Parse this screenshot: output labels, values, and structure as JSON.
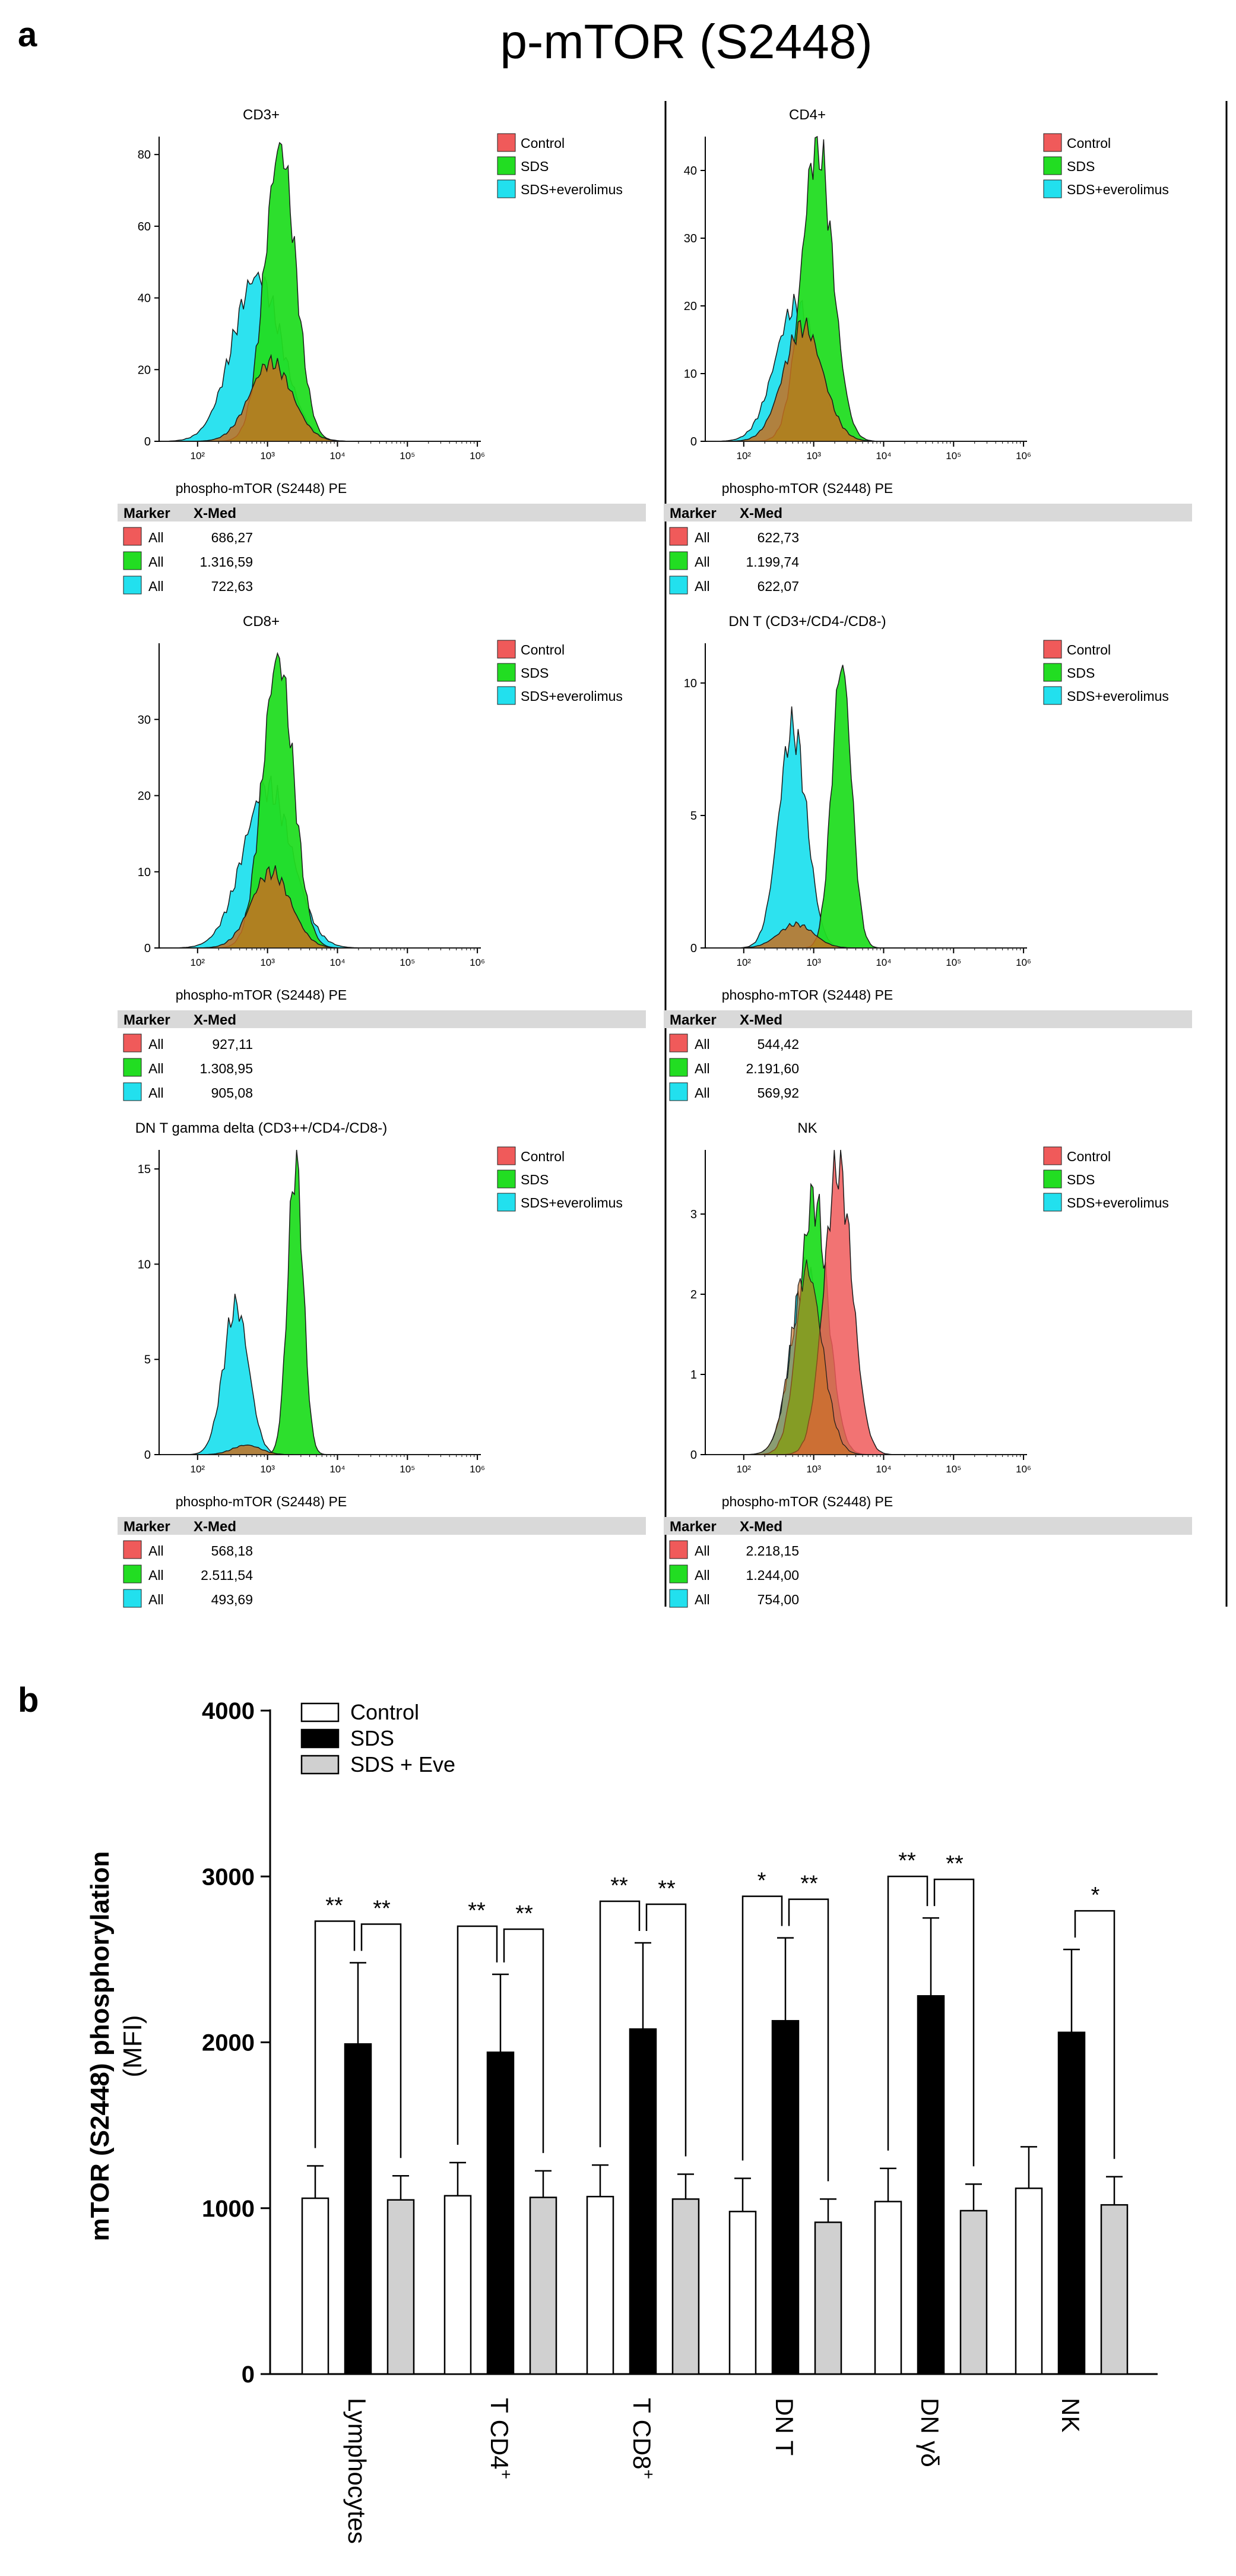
{
  "panel_a": {
    "label": "a",
    "title": "p-mTOR (S2448)",
    "xaxis_label": "phospho-mTOR (S2448) PE",
    "xticks": [
      "10²",
      "10³",
      "10⁴",
      "10⁵",
      "10⁶"
    ],
    "legend": [
      "Control",
      "SDS",
      "SDS+everolimus"
    ],
    "table_headers": [
      "Marker",
      "X-Med"
    ],
    "colors": {
      "control": "#f05a5a",
      "sds": "#22dd22",
      "eve": "#22e0ee",
      "overlap": "#c87020",
      "stat_header": "#d9d9d9",
      "outline": "#1a1a1a"
    },
    "plots": [
      {
        "title": "CD3+",
        "yticks": [
          "0",
          "20",
          "40",
          "60",
          "80"
        ],
        "ymax": 85,
        "stats": [
          {
            "marker": "All",
            "value": "686,27"
          },
          {
            "marker": "All",
            "value": "1.316,59"
          },
          {
            "marker": "All",
            "value": "722,63"
          }
        ]
      },
      {
        "title": "CD4+",
        "yticks": [
          "0",
          "10",
          "20",
          "30",
          "40"
        ],
        "ymax": 45,
        "stats": [
          {
            "marker": "All",
            "value": "622,73"
          },
          {
            "marker": "All",
            "value": "1.199,74"
          },
          {
            "marker": "All",
            "value": "622,07"
          }
        ]
      },
      {
        "title": "CD8+",
        "yticks": [
          "0",
          "10",
          "20",
          "30"
        ],
        "ymax": 40,
        "stats": [
          {
            "marker": "All",
            "value": "927,11"
          },
          {
            "marker": "All",
            "value": "1.308,95"
          },
          {
            "marker": "All",
            "value": "905,08"
          }
        ]
      },
      {
        "title": "DN T (CD3+/CD4-/CD8-)",
        "yticks": [
          "0",
          "5",
          "10"
        ],
        "ymax": 11.5,
        "stats": [
          {
            "marker": "All",
            "value": "544,42"
          },
          {
            "marker": "All",
            "value": "2.191,60"
          },
          {
            "marker": "All",
            "value": "569,92"
          }
        ]
      },
      {
        "title": "DN T gamma delta (CD3++/CD4-/CD8-)",
        "yticks": [
          "0",
          "5",
          "10",
          "15"
        ],
        "ymax": 16,
        "stats": [
          {
            "marker": "All",
            "value": "568,18"
          },
          {
            "marker": "All",
            "value": "2.511,54"
          },
          {
            "marker": "All",
            "value": "493,69"
          }
        ]
      },
      {
        "title": "NK",
        "yticks": [
          "0",
          "1",
          "2",
          "3"
        ],
        "ymax": 3.8,
        "stats": [
          {
            "marker": "All",
            "value": "2.218,15"
          },
          {
            "marker": "All",
            "value": "1.244,00"
          },
          {
            "marker": "All",
            "value": "754,00"
          }
        ]
      }
    ]
  },
  "chart_data": {
    "type": "bar",
    "panel_label": "b",
    "title": "",
    "ylabel_line1": "mTOR (S2448) phosphorylation",
    "ylabel_line2": "(MFI)",
    "ylim": [
      0,
      4000
    ],
    "yticks": [
      "0",
      "1000",
      "2000",
      "3000",
      "4000"
    ],
    "categories": [
      "Lymphocytes",
      "T CD4",
      "T CD8",
      "DN T",
      "DN γδ",
      "NK"
    ],
    "category_superscripts": [
      "",
      "+",
      "+",
      "",
      "",
      ""
    ],
    "series": [
      {
        "name": "Control",
        "color": "#ffffff",
        "values": [
          1060,
          1075,
          1070,
          980,
          1040,
          1120
        ],
        "errors": [
          195,
          200,
          190,
          200,
          200,
          250
        ]
      },
      {
        "name": "SDS",
        "color": "#000000",
        "values": [
          1990,
          1940,
          2080,
          2130,
          2280,
          2060
        ],
        "errors": [
          490,
          470,
          520,
          500,
          470,
          500
        ]
      },
      {
        "name": "SDS + Eve",
        "color": "#d0d0d0",
        "values": [
          1050,
          1065,
          1055,
          915,
          985,
          1020
        ],
        "errors": [
          145,
          160,
          150,
          140,
          160,
          170
        ]
      }
    ],
    "significance": [
      {
        "category": 0,
        "left": "**",
        "right": "**"
      },
      {
        "category": 1,
        "left": "**",
        "right": "**"
      },
      {
        "category": 2,
        "left": "**",
        "right": "**"
      },
      {
        "category": 3,
        "left": "*",
        "right": "**"
      },
      {
        "category": 4,
        "left": "**",
        "right": "**"
      },
      {
        "category": 5,
        "left": "",
        "right": "*"
      }
    ]
  }
}
